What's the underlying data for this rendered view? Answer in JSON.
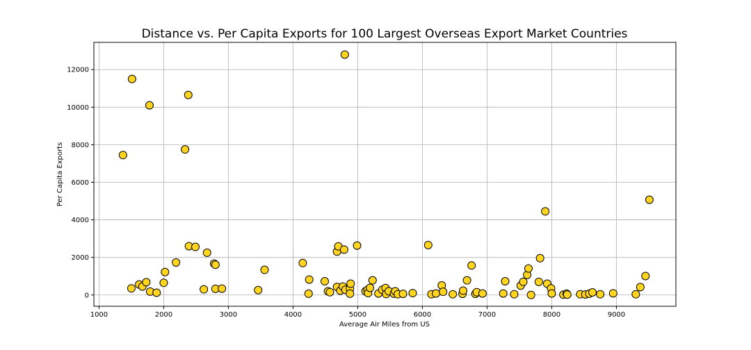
{
  "chart_data": {
    "type": "scatter",
    "title": "Distance vs. Per Capita Exports for 100 Largest Overseas Export Market Countries",
    "xlabel": "Average Air Miles from US",
    "ylabel": "Per Capita Exports",
    "xlim": [
      920,
      9920
    ],
    "ylim": [
      -600,
      13450
    ],
    "xticks": [
      1000,
      2000,
      3000,
      4000,
      5000,
      6000,
      7000,
      8000,
      9000
    ],
    "yticks": [
      0,
      2000,
      4000,
      6000,
      8000,
      10000,
      12000
    ],
    "grid": true,
    "marker_color": "#FFD51F",
    "marker_edge_color": "#000000",
    "points": [
      {
        "x": 1370,
        "y": 7450
      },
      {
        "x": 1510,
        "y": 11500
      },
      {
        "x": 1500,
        "y": 350
      },
      {
        "x": 1620,
        "y": 560
      },
      {
        "x": 1670,
        "y": 450
      },
      {
        "x": 1730,
        "y": 680
      },
      {
        "x": 1780,
        "y": 10100
      },
      {
        "x": 1790,
        "y": 180
      },
      {
        "x": 1890,
        "y": 120
      },
      {
        "x": 2000,
        "y": 650
      },
      {
        "x": 2020,
        "y": 1220
      },
      {
        "x": 2190,
        "y": 1730
      },
      {
        "x": 2330,
        "y": 7750
      },
      {
        "x": 2380,
        "y": 10650
      },
      {
        "x": 2390,
        "y": 2600
      },
      {
        "x": 2490,
        "y": 2560
      },
      {
        "x": 2620,
        "y": 300
      },
      {
        "x": 2670,
        "y": 2250
      },
      {
        "x": 2780,
        "y": 1670
      },
      {
        "x": 2800,
        "y": 1610
      },
      {
        "x": 2800,
        "y": 330
      },
      {
        "x": 2900,
        "y": 340
      },
      {
        "x": 3460,
        "y": 260
      },
      {
        "x": 3560,
        "y": 1340
      },
      {
        "x": 4150,
        "y": 1700
      },
      {
        "x": 4250,
        "y": 820
      },
      {
        "x": 4240,
        "y": 70
      },
      {
        "x": 4490,
        "y": 730
      },
      {
        "x": 4540,
        "y": 200
      },
      {
        "x": 4570,
        "y": 150
      },
      {
        "x": 4680,
        "y": 430
      },
      {
        "x": 4680,
        "y": 2310
      },
      {
        "x": 4700,
        "y": 2590
      },
      {
        "x": 4730,
        "y": 230
      },
      {
        "x": 4770,
        "y": 450
      },
      {
        "x": 4790,
        "y": 2420
      },
      {
        "x": 4800,
        "y": 12800
      },
      {
        "x": 4810,
        "y": 280
      },
      {
        "x": 4880,
        "y": 330
      },
      {
        "x": 4890,
        "y": 600
      },
      {
        "x": 4880,
        "y": 70
      },
      {
        "x": 4990,
        "y": 2630
      },
      {
        "x": 5120,
        "y": 200
      },
      {
        "x": 5150,
        "y": 270
      },
      {
        "x": 5160,
        "y": 100
      },
      {
        "x": 5190,
        "y": 380
      },
      {
        "x": 5230,
        "y": 780
      },
      {
        "x": 5320,
        "y": 80
      },
      {
        "x": 5380,
        "y": 280
      },
      {
        "x": 5430,
        "y": 370
      },
      {
        "x": 5440,
        "y": 50
      },
      {
        "x": 5480,
        "y": 200
      },
      {
        "x": 5560,
        "y": 70
      },
      {
        "x": 5580,
        "y": 200
      },
      {
        "x": 5620,
        "y": 40
      },
      {
        "x": 5700,
        "y": 60
      },
      {
        "x": 5850,
        "y": 100
      },
      {
        "x": 6090,
        "y": 2660
      },
      {
        "x": 6140,
        "y": 40
      },
      {
        "x": 6210,
        "y": 80
      },
      {
        "x": 6300,
        "y": 510
      },
      {
        "x": 6320,
        "y": 170
      },
      {
        "x": 6470,
        "y": 40
      },
      {
        "x": 6620,
        "y": 60
      },
      {
        "x": 6630,
        "y": 230
      },
      {
        "x": 6690,
        "y": 780
      },
      {
        "x": 6760,
        "y": 1570
      },
      {
        "x": 6820,
        "y": 60
      },
      {
        "x": 6840,
        "y": 150
      },
      {
        "x": 6930,
        "y": 80
      },
      {
        "x": 7250,
        "y": 80
      },
      {
        "x": 7280,
        "y": 730
      },
      {
        "x": 7420,
        "y": 40
      },
      {
        "x": 7520,
        "y": 500
      },
      {
        "x": 7560,
        "y": 700
      },
      {
        "x": 7620,
        "y": 1070
      },
      {
        "x": 7640,
        "y": 1410
      },
      {
        "x": 7680,
        "y": 0
      },
      {
        "x": 7800,
        "y": 700
      },
      {
        "x": 7820,
        "y": 1960
      },
      {
        "x": 7900,
        "y": 4450
      },
      {
        "x": 7930,
        "y": 600
      },
      {
        "x": 7990,
        "y": 350
      },
      {
        "x": 8000,
        "y": 80
      },
      {
        "x": 8180,
        "y": 20
      },
      {
        "x": 8230,
        "y": 70
      },
      {
        "x": 8240,
        "y": 20
      },
      {
        "x": 8440,
        "y": 40
      },
      {
        "x": 8520,
        "y": 30
      },
      {
        "x": 8580,
        "y": 70
      },
      {
        "x": 8630,
        "y": 140
      },
      {
        "x": 8750,
        "y": 40
      },
      {
        "x": 8950,
        "y": 90
      },
      {
        "x": 9300,
        "y": 40
      },
      {
        "x": 9370,
        "y": 420
      },
      {
        "x": 9450,
        "y": 1010
      },
      {
        "x": 9510,
        "y": 5070
      }
    ]
  }
}
